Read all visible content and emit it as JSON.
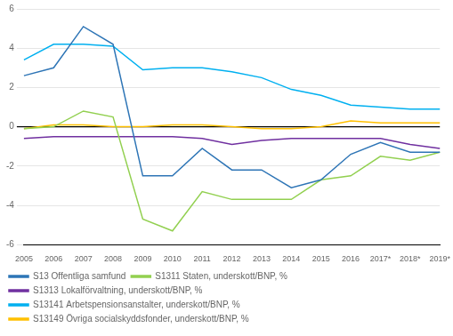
{
  "chart_data": {
    "type": "line",
    "categories": [
      "2005",
      "2006",
      "2007",
      "2008",
      "2009",
      "2010",
      "2011",
      "2012",
      "2013",
      "2014",
      "2015",
      "2016",
      "2017*",
      "2018*",
      "2019*"
    ],
    "series": [
      {
        "name": "S13 Offentliga samfund",
        "color": "#2e75b6",
        "values": [
          2.6,
          3.0,
          5.1,
          4.2,
          -2.5,
          -2.5,
          -1.1,
          -2.2,
          -2.2,
          -3.1,
          -2.7,
          -1.4,
          -0.8,
          -1.3,
          -1.3
        ]
      },
      {
        "name": "S1311 Staten, underskott/BNP, %",
        "color": "#92d050",
        "values": [
          -0.1,
          0.0,
          0.8,
          0.5,
          -4.7,
          -5.3,
          -3.3,
          -3.7,
          -3.7,
          -3.7,
          -2.7,
          -2.5,
          -1.5,
          -1.7,
          -1.3
        ]
      },
      {
        "name": "S1313 Lokalförvaltning, underskott/BNP, %",
        "color": "#7030a0",
        "values": [
          -0.6,
          -0.5,
          -0.5,
          -0.5,
          -0.5,
          -0.5,
          -0.6,
          -0.9,
          -0.7,
          -0.6,
          -0.6,
          -0.6,
          -0.6,
          -0.9,
          -1.1
        ]
      },
      {
        "name": "S13141 Arbetspensionsanstalter, underskott/BNP, %",
        "color": "#00b0f0",
        "values": [
          3.4,
          4.2,
          4.2,
          4.1,
          2.9,
          3.0,
          3.0,
          2.8,
          2.5,
          1.9,
          1.6,
          1.1,
          1.0,
          0.9,
          0.9
        ]
      },
      {
        "name": "S13149 Övriga socialskyddsfonder, underskott/BNP, %",
        "color": "#ffc000",
        "values": [
          -0.1,
          0.1,
          0.1,
          0.0,
          0.0,
          0.1,
          0.1,
          0.0,
          -0.1,
          -0.1,
          0.0,
          0.3,
          0.2,
          0.2,
          0.2
        ]
      }
    ],
    "ylim": [
      -6,
      6
    ],
    "yticks": [
      -6,
      -4,
      -2,
      0,
      2,
      4,
      6
    ],
    "grid": true,
    "legend": "bottom"
  }
}
